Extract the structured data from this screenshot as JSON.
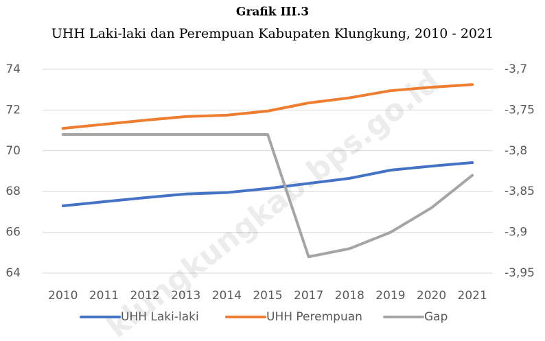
{
  "chart_data": {
    "type": "line",
    "title": "Grafik III.3",
    "subtitle": "UHH Laki-laki dan Perempuan Kabupaten Klungkung, 2010 - 2021",
    "watermark": "klungkungkab.bps.go.id",
    "categories": [
      "2010",
      "2011",
      "2012",
      "2013",
      "2014",
      "2015",
      "2017",
      "2018",
      "2019",
      "2020",
      "2021"
    ],
    "series": [
      {
        "name": "UHH Laki-laki",
        "color": "#4472c4",
        "values": [
          67.3,
          67.5,
          67.7,
          67.88,
          67.95,
          68.15,
          68.4,
          68.65,
          69.05,
          69.25,
          69.42
        ]
      },
      {
        "name": "UHH Perempuan",
        "color": "#ed7d31",
        "values": [
          71.1,
          71.3,
          71.5,
          71.68,
          71.75,
          71.95,
          72.35,
          72.6,
          72.95,
          73.12,
          73.25
        ]
      },
      {
        "name": "Gap",
        "color": "#a5a5a5",
        "axis": "y2",
        "values": [
          -3.78,
          -3.78,
          -3.78,
          -3.78,
          -3.78,
          -3.78,
          -3.93,
          -3.92,
          -3.9,
          -3.87,
          -3.83
        ]
      }
    ],
    "ylim": [
      64,
      74
    ],
    "yticks": [
      64,
      66,
      68,
      70,
      72,
      74
    ],
    "y2lim": [
      -3.95,
      -3.7
    ],
    "y2ticks": [
      {
        "value": -3.95,
        "label": "-3,95"
      },
      {
        "value": -3.9,
        "label": "-3,9"
      },
      {
        "value": -3.85,
        "label": "-3,85"
      },
      {
        "value": -3.8,
        "label": "-3,8"
      },
      {
        "value": -3.75,
        "label": "-3,75"
      },
      {
        "value": -3.7,
        "label": "-3,7"
      }
    ],
    "grid": true,
    "legend": "bottom"
  }
}
